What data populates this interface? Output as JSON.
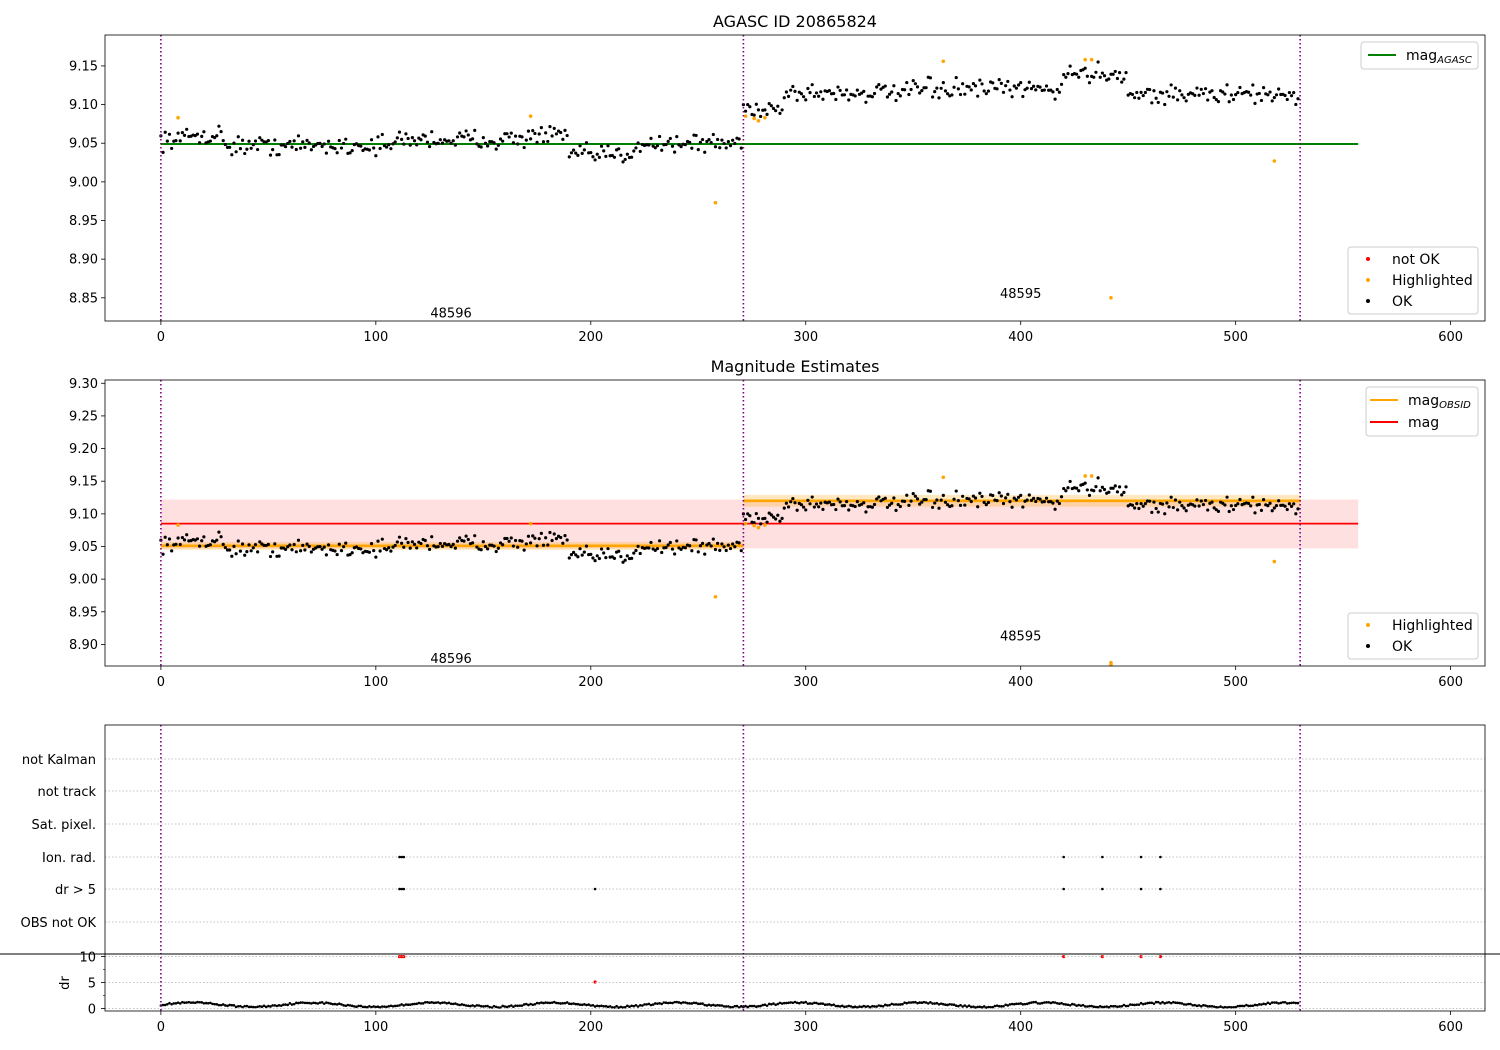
{
  "chart_data": [
    {
      "type": "scatter",
      "title": "AGASC ID 20865824",
      "xlim": [
        -26,
        616
      ],
      "ylim": [
        8.82,
        9.19
      ],
      "x_ticks": [
        0,
        100,
        200,
        300,
        400,
        500,
        600
      ],
      "y_ticks": [
        8.85,
        8.9,
        8.95,
        9.0,
        9.05,
        9.1,
        9.15
      ],
      "obsid_boundaries": [
        0,
        271,
        530
      ],
      "obsid_labels": [
        {
          "text": "48596",
          "x": 135,
          "y": 8.83
        },
        {
          "text": "48595",
          "x": 400,
          "y": 8.855
        }
      ],
      "lines": [
        {
          "name": "mag_AGASC",
          "label_main": "mag",
          "label_sub": "AGASC",
          "y": 9.049,
          "x_range": [
            0,
            557
          ],
          "color": "#008000"
        }
      ],
      "legend_lines": [
        {
          "name": "mag_AGASC",
          "label_main": "mag",
          "label_sub": "AGASC",
          "color": "#008000"
        }
      ],
      "legend_points": [
        {
          "name": "not OK",
          "color": "#ff0000"
        },
        {
          "name": "Highlighted",
          "color": "#ffa500"
        },
        {
          "name": "OK",
          "color": "#000000"
        }
      ],
      "segments": [
        {
          "x_range": [
            0,
            12
          ],
          "y": 9.055
        },
        {
          "x_range": [
            12,
            30
          ],
          "y": 9.06
        },
        {
          "x_range": [
            30,
            110
          ],
          "y": 9.047
        },
        {
          "x_range": [
            110,
            170
          ],
          "y": 9.055
        },
        {
          "x_range": [
            170,
            190
          ],
          "y": 9.06
        },
        {
          "x_range": [
            190,
            220
          ],
          "y": 9.035
        },
        {
          "x_range": [
            220,
            271
          ],
          "y": 9.05
        },
        {
          "x_range": [
            271,
            290
          ],
          "y": 9.095
        },
        {
          "x_range": [
            290,
            350
          ],
          "y": 9.115
        },
        {
          "x_range": [
            350,
            420
          ],
          "y": 9.12
        },
        {
          "x_range": [
            420,
            450
          ],
          "y": 9.14
        },
        {
          "x_range": [
            450,
            530
          ],
          "y": 9.113
        }
      ],
      "highlighted_points": [
        [
          8,
          9.083
        ],
        [
          172,
          9.085
        ],
        [
          258,
          8.973
        ],
        [
          272,
          9.085
        ],
        [
          276,
          9.082
        ],
        [
          278,
          9.079
        ],
        [
          281,
          9.083
        ],
        [
          364,
          9.156
        ],
        [
          430,
          9.158
        ],
        [
          433,
          9.158
        ],
        [
          442,
          8.85
        ],
        [
          518,
          9.027
        ]
      ],
      "ok_color": "#000000"
    },
    {
      "type": "scatter",
      "title": "Magnitude Estimates",
      "xlim": [
        -26,
        616
      ],
      "ylim": [
        8.867,
        9.305
      ],
      "x_ticks": [
        0,
        100,
        200,
        300,
        400,
        500,
        600
      ],
      "y_ticks": [
        8.9,
        8.95,
        9.0,
        9.05,
        9.1,
        9.15,
        9.2,
        9.25,
        9.3
      ],
      "obsid_boundaries": [
        0,
        271,
        530
      ],
      "obsid_labels": [
        {
          "text": "48596",
          "x": 135,
          "y": 8.878
        },
        {
          "text": "48595",
          "x": 400,
          "y": 8.912
        }
      ],
      "mag_band": {
        "y_range": [
          9.047,
          9.122
        ],
        "x_range": [
          0,
          557
        ],
        "color": "#ffcccc"
      },
      "lines": [
        {
          "name": "mag",
          "label_main": "mag",
          "y": 9.085,
          "x_range": [
            0,
            557
          ],
          "color": "#ff0000"
        },
        {
          "name": "mag_OBSID_1",
          "label_main": "mag",
          "label_sub": "OBSID",
          "y": 9.051,
          "x_range": [
            0,
            271
          ],
          "color": "#ffa500"
        },
        {
          "name": "mag_OBSID_2",
          "label_main": "mag",
          "label_sub": "OBSID",
          "y": 9.12,
          "x_range": [
            271,
            530
          ],
          "color": "#ffa500"
        }
      ],
      "obsid_bands": [
        {
          "x_range": [
            0,
            271
          ],
          "y_range": [
            9.045,
            9.057
          ]
        },
        {
          "x_range": [
            271,
            530
          ],
          "y_range": [
            9.111,
            9.129
          ]
        }
      ],
      "legend_lines": [
        {
          "name": "mag_OBSID",
          "label_main": "mag",
          "label_sub": "OBSID",
          "color": "#ffa500"
        },
        {
          "name": "mag",
          "label_main": "mag",
          "color": "#ff0000"
        }
      ],
      "legend_points": [
        {
          "name": "Highlighted",
          "color": "#ffa500"
        },
        {
          "name": "OK",
          "color": "#000000"
        }
      ],
      "highlighted_points": [
        [
          8,
          9.083
        ],
        [
          172,
          9.085
        ],
        [
          258,
          8.973
        ],
        [
          272,
          9.085
        ],
        [
          276,
          9.082
        ],
        [
          278,
          9.079
        ],
        [
          281,
          9.083
        ],
        [
          364,
          9.156
        ],
        [
          430,
          9.158
        ],
        [
          433,
          9.158
        ],
        [
          442,
          8.872
        ],
        [
          442,
          8.869
        ],
        [
          518,
          9.027
        ]
      ],
      "ok_color": "#000000"
    },
    {
      "type": "scatter",
      "xlim": [
        -26,
        616
      ],
      "flag_labels": [
        "not Kalman",
        "not track",
        "Sat. pixel.",
        "Ion. rad.",
        "dr > 5",
        "OBS not OK"
      ],
      "flag_points": {
        "Ion. rad.": [
          111,
          112,
          113,
          420,
          438,
          456,
          465
        ],
        "dr > 5": [
          111,
          112,
          113,
          202,
          420,
          438,
          456,
          465
        ]
      },
      "obsid_boundaries": [
        0,
        271,
        530
      ],
      "ylabel": "dr",
      "dr_ticks": [
        0,
        5,
        10
      ],
      "dr_ylim": [
        -0.5,
        10.5
      ],
      "dr_outliers": [
        [
          111,
          10
        ],
        [
          112,
          10
        ],
        [
          113,
          10
        ],
        [
          202,
          5.1
        ],
        [
          420,
          10
        ],
        [
          438,
          10
        ],
        [
          456,
          10
        ],
        [
          465,
          10
        ]
      ],
      "x_ticks": [
        0,
        100,
        200,
        300,
        400,
        500,
        600
      ]
    }
  ]
}
